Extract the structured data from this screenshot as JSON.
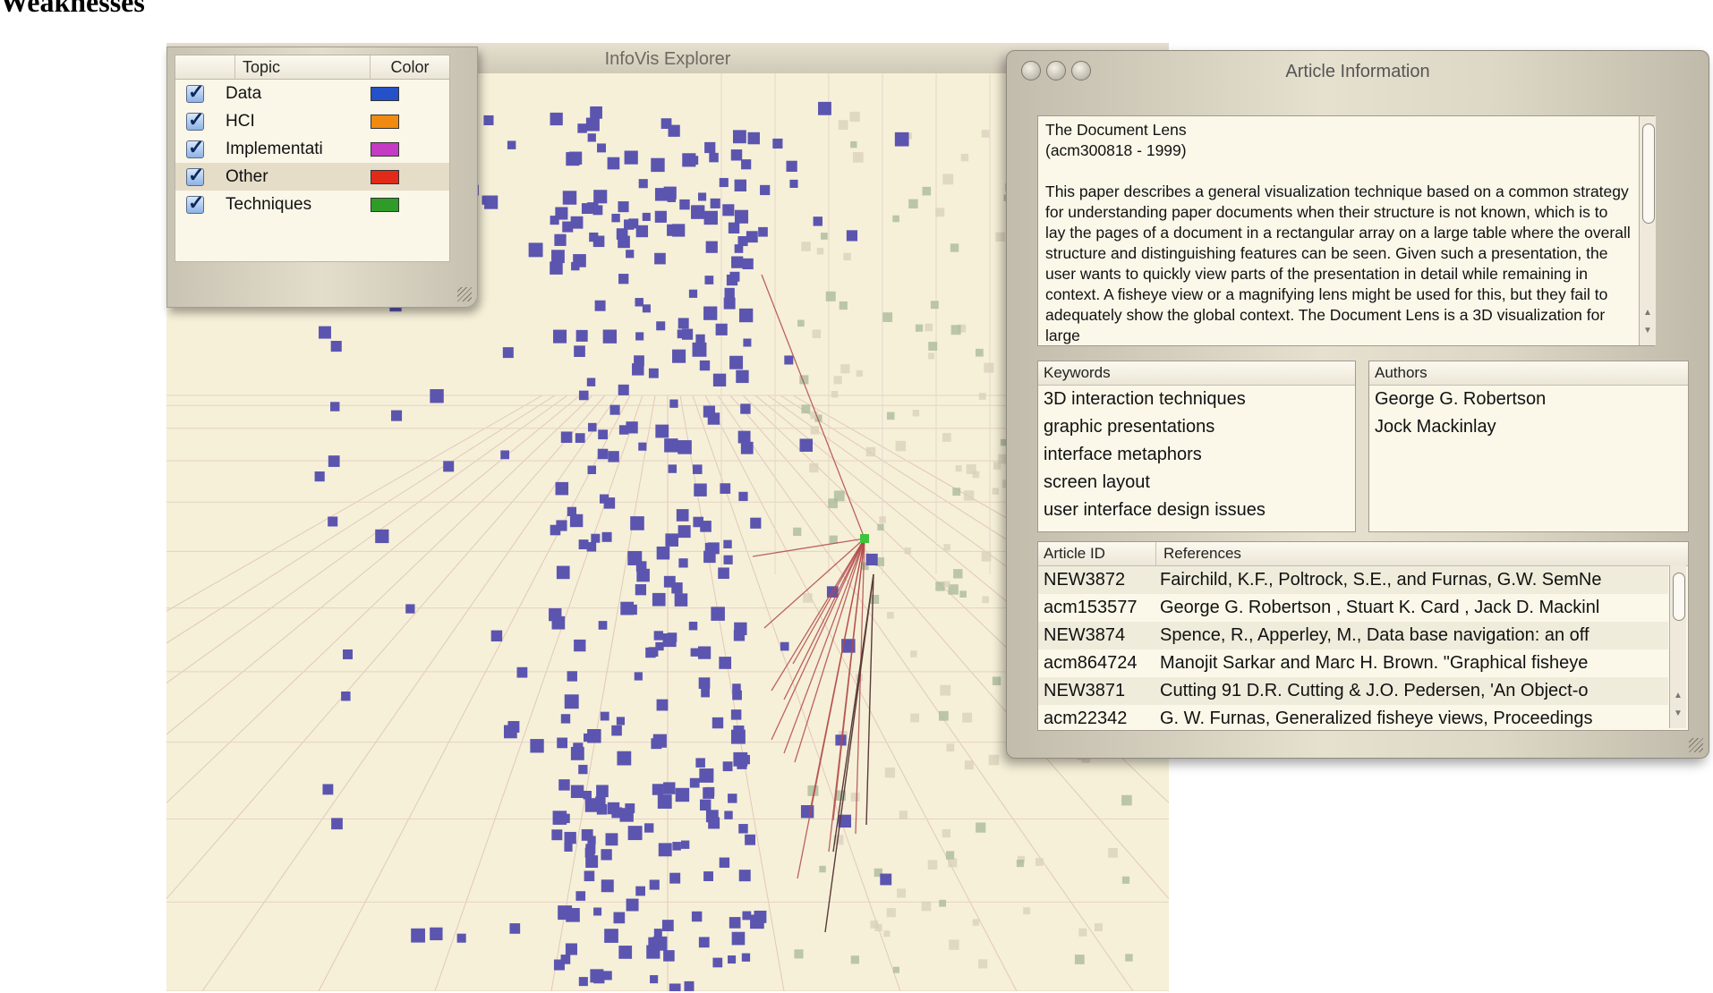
{
  "page_heading": "Weaknesses",
  "viz_window": {
    "title": "InfoVis Explorer"
  },
  "legend": {
    "headers": {
      "topic": "Topic",
      "color": "Color"
    },
    "topics": [
      {
        "name": "Data",
        "color": "#2450c8",
        "checked": true
      },
      {
        "name": "HCI",
        "color": "#f08a10",
        "checked": true
      },
      {
        "name": "Implementati",
        "color": "#c43cc4",
        "checked": true
      },
      {
        "name": "Other",
        "color": "#e22a18",
        "checked": true,
        "selected": true
      },
      {
        "name": "Techniques",
        "color": "#2f9c2a",
        "checked": true
      }
    ]
  },
  "article": {
    "window_title": "Article Information",
    "title": "The Document Lens",
    "id_line": "(acm300818 - 1999)",
    "abstract": "This paper describes a general visualization technique based on a common strategy for understanding paper documents when their structure is not known, which is to lay the pages of a document in a rectangular array on a large table where the overall structure and distinguishing features can be seen. Given such a presentation, the user wants to quickly view parts of the presentation in detail while remaining in context. A fisheye view or a magnifying lens might be used for this, but they fail to adequately show the global context. The Document Lens is a 3D visualization for large",
    "keywords_header": "Keywords",
    "keywords": [
      "3D interaction techniques",
      "graphic presentations",
      "interface metaphors",
      "screen layout",
      "user interface design issues"
    ],
    "authors_header": "Authors",
    "authors": [
      "George G. Robertson",
      "Jock Mackinlay"
    ],
    "references_headers": {
      "id": "Article ID",
      "ref": "References"
    },
    "references": [
      {
        "id": "NEW3872",
        "ref": "Fairchild, K.F., Poltrock, S.E., and Furnas, G.W. SemNe"
      },
      {
        "id": "acm153577",
        "ref": "George G. Robertson , Stuart K. Card , Jack D. Mackinl"
      },
      {
        "id": "NEW3874",
        "ref": "Spence, R., Apperley, M., Data base navigation: an off"
      },
      {
        "id": "acm864724",
        "ref": "Manojit Sarkar and Marc H. Brown. \"Graphical fisheye"
      },
      {
        "id": "NEW3871",
        "ref": "Cutting 91 D.R. Cutting & J.O. Pedersen, 'An Object-o"
      },
      {
        "id": "acm22342",
        "ref": "G. W. Furnas, Generalized fisheye views, Proceedings"
      }
    ]
  },
  "colors": {
    "node": "#5b55b0",
    "background": "#f6f0d8",
    "link": "#b24a4a",
    "selected_node": "#3ec33e"
  }
}
